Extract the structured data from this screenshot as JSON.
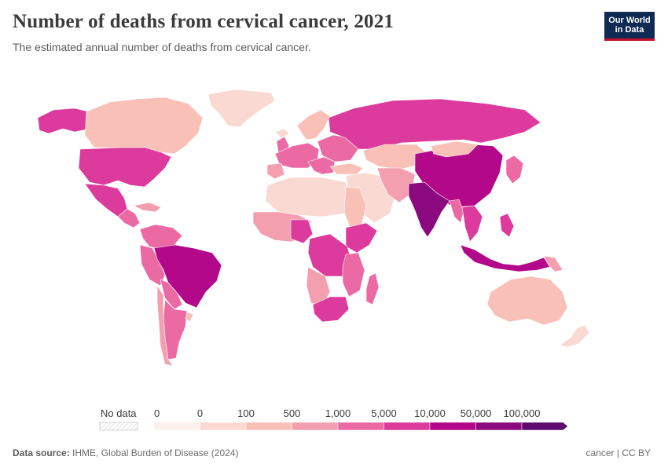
{
  "header": {
    "title": "Number of deaths from cervical cancer, 2021",
    "subtitle": "The estimated annual number of deaths from cervical cancer."
  },
  "logo": {
    "line1": "Our World",
    "line2": "in Data"
  },
  "legend": {
    "no_data_label": "No data",
    "ticks": [
      "0",
      "0",
      "100",
      "500",
      "1,000",
      "5,000",
      "10,000",
      "50,000",
      "100,000"
    ],
    "colors": [
      "#fdf0ec",
      "#fbd9d3",
      "#f8c0b6",
      "#f49fb0",
      "#ec6aa4",
      "#dc3a9c",
      "#b4088a",
      "#8c0a7f",
      "#5e0a6e"
    ]
  },
  "footer": {
    "source_label": "Data source:",
    "source_text": "IHME, Global Burden of Disease (2024)",
    "right_text": "cancer | CC BY"
  }
}
